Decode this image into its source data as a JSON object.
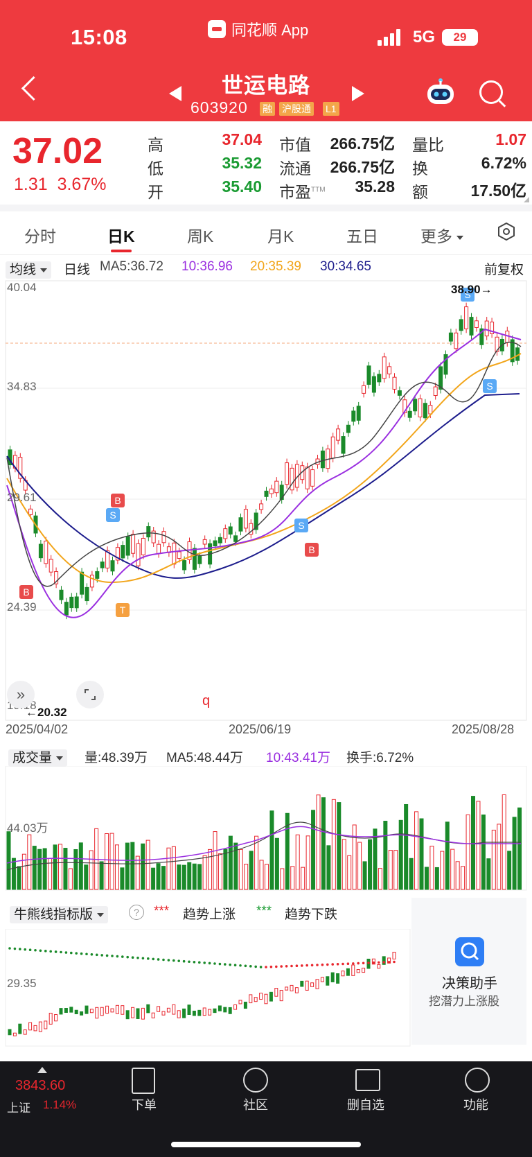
{
  "status": {
    "time": "15:08",
    "app": "同花顺 App",
    "network": "5G",
    "battery": "29"
  },
  "stock": {
    "name": "世运电路",
    "code": "603920",
    "tags": [
      "融",
      "沪股通",
      "L1"
    ]
  },
  "quote": {
    "price": "37.02",
    "change": "1.31",
    "change_pct": "3.67%",
    "high_label": "高",
    "high": "37.04",
    "low_label": "低",
    "low": "35.32",
    "open_label": "开",
    "open": "35.40",
    "mktcap_label": "市值",
    "mktcap": "266.75亿",
    "float_label": "流通",
    "float": "266.75亿",
    "pe_label": "市盈",
    "pe_sup": "TTM",
    "pe": "35.28",
    "volratio_label": "量比",
    "volratio": "1.07",
    "turnover_label": "换",
    "turnover": "6.72%",
    "amount_label": "额",
    "amount": "17.50亿"
  },
  "tabs": [
    "分时",
    "日K",
    "周K",
    "月K",
    "五日",
    "更多"
  ],
  "active_tab": 1,
  "ma_bar": {
    "selector": "均线",
    "period": "日线",
    "ma5": "MA5:36.72",
    "ma10": "10:36.96",
    "ma20": "20:35.39",
    "ma30": "30:34.65",
    "adjust": "前复权"
  },
  "colors": {
    "ma5": "#444444",
    "ma10": "#9a2fe0",
    "ma20": "#f2a51a",
    "ma30": "#1c1c8c",
    "up": "#e8262d",
    "down": "#1a8a2a",
    "header": "#ee3a3f"
  },
  "kline_axis": {
    "y_top": "40.04",
    "y_2": "34.83",
    "y_3": "29.61",
    "y_4": "24.39",
    "y_bottom": "19.18",
    "hi_marker": "38.90→",
    "lo_marker": "←20.32",
    "dates": [
      "2025/04/02",
      "2025/06/19",
      "2025/08/28"
    ]
  },
  "signals": [
    "B",
    "S",
    "T",
    "S",
    "B",
    "S",
    "S",
    "B"
  ],
  "volume_bar": {
    "selector": "成交量",
    "vol": "量:48.39万",
    "ma5": "MA5:48.44万",
    "ma10": "10:43.41万",
    "turnover": "换手:6.72%",
    "axis": "44.03万"
  },
  "bear_bar": {
    "selector": "牛熊线指标版",
    "help": "?",
    "up_label": "趋势上涨",
    "down_label": "趋势下跌",
    "axis": "29.35"
  },
  "assistant": {
    "title": "决策助手",
    "subtitle": "挖潜力上涨股"
  },
  "bottom": {
    "index_value": "3843.60",
    "index_name": "上证",
    "index_pct": "1.14%",
    "nav": [
      "下单",
      "社区",
      "删自选",
      "功能"
    ]
  }
}
